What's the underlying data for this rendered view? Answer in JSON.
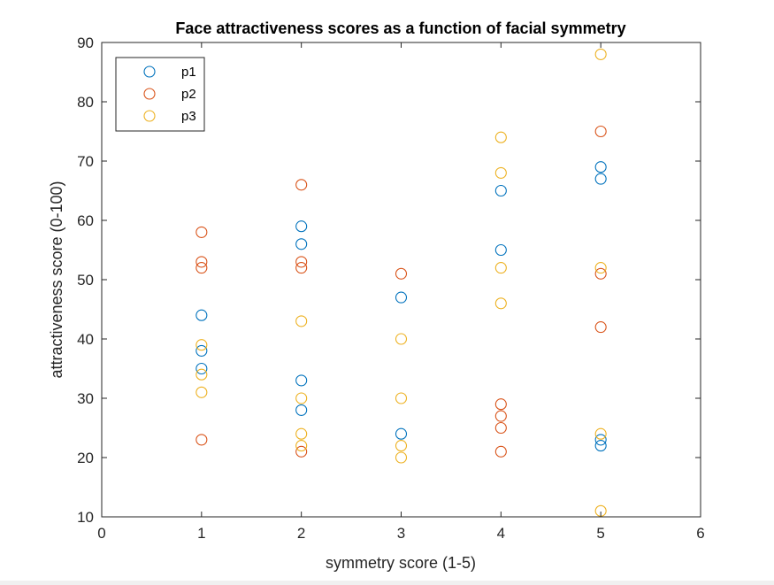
{
  "chart_data": {
    "type": "scatter",
    "title": "Face attractiveness scores as a function of facial symmetry",
    "xlabel": "symmetry score (1-5)",
    "ylabel": "attractiveness score (0-100)",
    "xlim": [
      0,
      6
    ],
    "ylim": [
      10,
      90
    ],
    "xticks": [
      0,
      1,
      2,
      3,
      4,
      5,
      6
    ],
    "yticks": [
      10,
      20,
      30,
      40,
      50,
      60,
      70,
      80,
      90
    ],
    "grid": false,
    "box": true,
    "legend_position": "top-left",
    "marker": "open-circle",
    "series": [
      {
        "name": "p1",
        "color": "#0072BD",
        "points": [
          [
            1,
            44
          ],
          [
            1,
            38
          ],
          [
            1,
            35
          ],
          [
            2,
            59
          ],
          [
            2,
            56
          ],
          [
            2,
            33
          ],
          [
            2,
            28
          ],
          [
            3,
            47
          ],
          [
            3,
            24
          ],
          [
            4,
            65
          ],
          [
            4,
            55
          ],
          [
            5,
            69
          ],
          [
            5,
            67
          ],
          [
            5,
            23
          ],
          [
            5,
            22
          ]
        ]
      },
      {
        "name": "p2",
        "color": "#D95319",
        "points": [
          [
            1,
            58
          ],
          [
            1,
            53
          ],
          [
            1,
            52
          ],
          [
            1,
            23
          ],
          [
            2,
            66
          ],
          [
            2,
            53
          ],
          [
            2,
            52
          ],
          [
            2,
            21
          ],
          [
            3,
            51
          ],
          [
            4,
            29
          ],
          [
            4,
            27
          ],
          [
            4,
            25
          ],
          [
            4,
            21
          ],
          [
            5,
            75
          ],
          [
            5,
            51
          ],
          [
            5,
            42
          ]
        ]
      },
      {
        "name": "p3",
        "color": "#EDB120",
        "points": [
          [
            1,
            39
          ],
          [
            1,
            34
          ],
          [
            1,
            31
          ],
          [
            2,
            43
          ],
          [
            2,
            30
          ],
          [
            2,
            24
          ],
          [
            2,
            22
          ],
          [
            3,
            40
          ],
          [
            3,
            30
          ],
          [
            3,
            22
          ],
          [
            3,
            20
          ],
          [
            4,
            74
          ],
          [
            4,
            68
          ],
          [
            4,
            52
          ],
          [
            4,
            46
          ],
          [
            5,
            88
          ],
          [
            5,
            52
          ],
          [
            5,
            24
          ],
          [
            5,
            11
          ]
        ]
      }
    ]
  }
}
